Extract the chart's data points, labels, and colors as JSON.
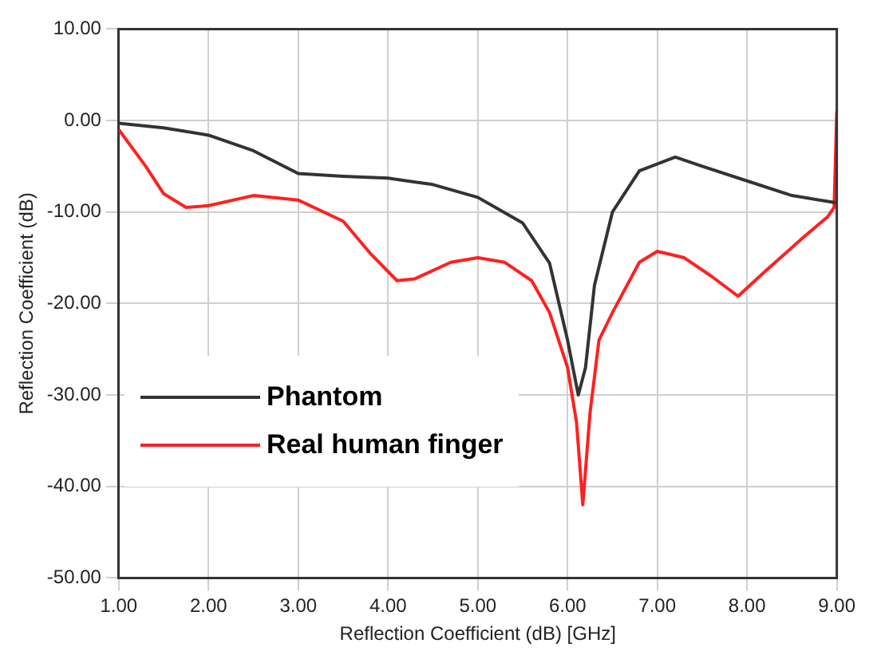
{
  "chart_data": {
    "type": "line",
    "xlabel": "Reflection Coefficient (dB) [GHz]",
    "ylabel": "Reflection Coefficient (dB)",
    "xlim": [
      1,
      9
    ],
    "ylim": [
      -50,
      10
    ],
    "xticks": [
      {
        "value": 1,
        "label": "1.00"
      },
      {
        "value": 2,
        "label": "2.00"
      },
      {
        "value": 3,
        "label": "3.00"
      },
      {
        "value": 4,
        "label": "4.00"
      },
      {
        "value": 5,
        "label": "5.00"
      },
      {
        "value": 6,
        "label": "6.00"
      },
      {
        "value": 7,
        "label": "7.00"
      },
      {
        "value": 8,
        "label": "8.00"
      },
      {
        "value": 9,
        "label": "9.00"
      }
    ],
    "yticks": [
      {
        "value": -50,
        "label": "-50.00"
      },
      {
        "value": -40,
        "label": "-40.00"
      },
      {
        "value": -30,
        "label": "-30.00"
      },
      {
        "value": -20,
        "label": "-20.00"
      },
      {
        "value": -10,
        "label": "-10.00"
      },
      {
        "value": 0,
        "label": "0.00"
      },
      {
        "value": 10,
        "label": "10.00"
      }
    ],
    "grid": true,
    "legend": "bottom left",
    "marker": "none",
    "line_style": "solid",
    "series": [
      {
        "name": "Phantom",
        "color": "#333333",
        "x": [
          1,
          1.5,
          2,
          2.5,
          3,
          3.5,
          4,
          4.5,
          5,
          5.5,
          5.8,
          6.0,
          6.12,
          6.2,
          6.3,
          6.5,
          6.8,
          7.2,
          7.5,
          8,
          8.5,
          9
        ],
        "values": [
          -0.3,
          -0.8,
          -1.6,
          -3.3,
          -5.8,
          -6.1,
          -6.3,
          -7,
          -8.4,
          -11.2,
          -15.6,
          -24,
          -30,
          -27,
          -18,
          -10,
          -5.5,
          -4,
          -5,
          -6.6,
          -8.2,
          -9
        ]
      },
      {
        "name": "Real human finger",
        "color": "#ff2020",
        "x": [
          1,
          1.3,
          1.5,
          1.75,
          2,
          2.5,
          3,
          3.5,
          3.8,
          4.1,
          4.3,
          4.7,
          5,
          5.3,
          5.6,
          5.8,
          6.0,
          6.1,
          6.17,
          6.25,
          6.35,
          6.5,
          6.8,
          7.0,
          7.3,
          7.6,
          7.9,
          8.2,
          8.6,
          8.9,
          8.97,
          9
        ],
        "values": [
          -1,
          -5,
          -8,
          -9.5,
          -9.3,
          -8.2,
          -8.7,
          -11,
          -14.5,
          -17.5,
          -17.3,
          -15.5,
          -15,
          -15.5,
          -17.5,
          -21,
          -27,
          -33,
          -42,
          -32,
          -24,
          -21,
          -15.5,
          -14.3,
          -15,
          -17,
          -19.2,
          -16.5,
          -13,
          -10.5,
          -9.5,
          1
        ]
      }
    ]
  }
}
